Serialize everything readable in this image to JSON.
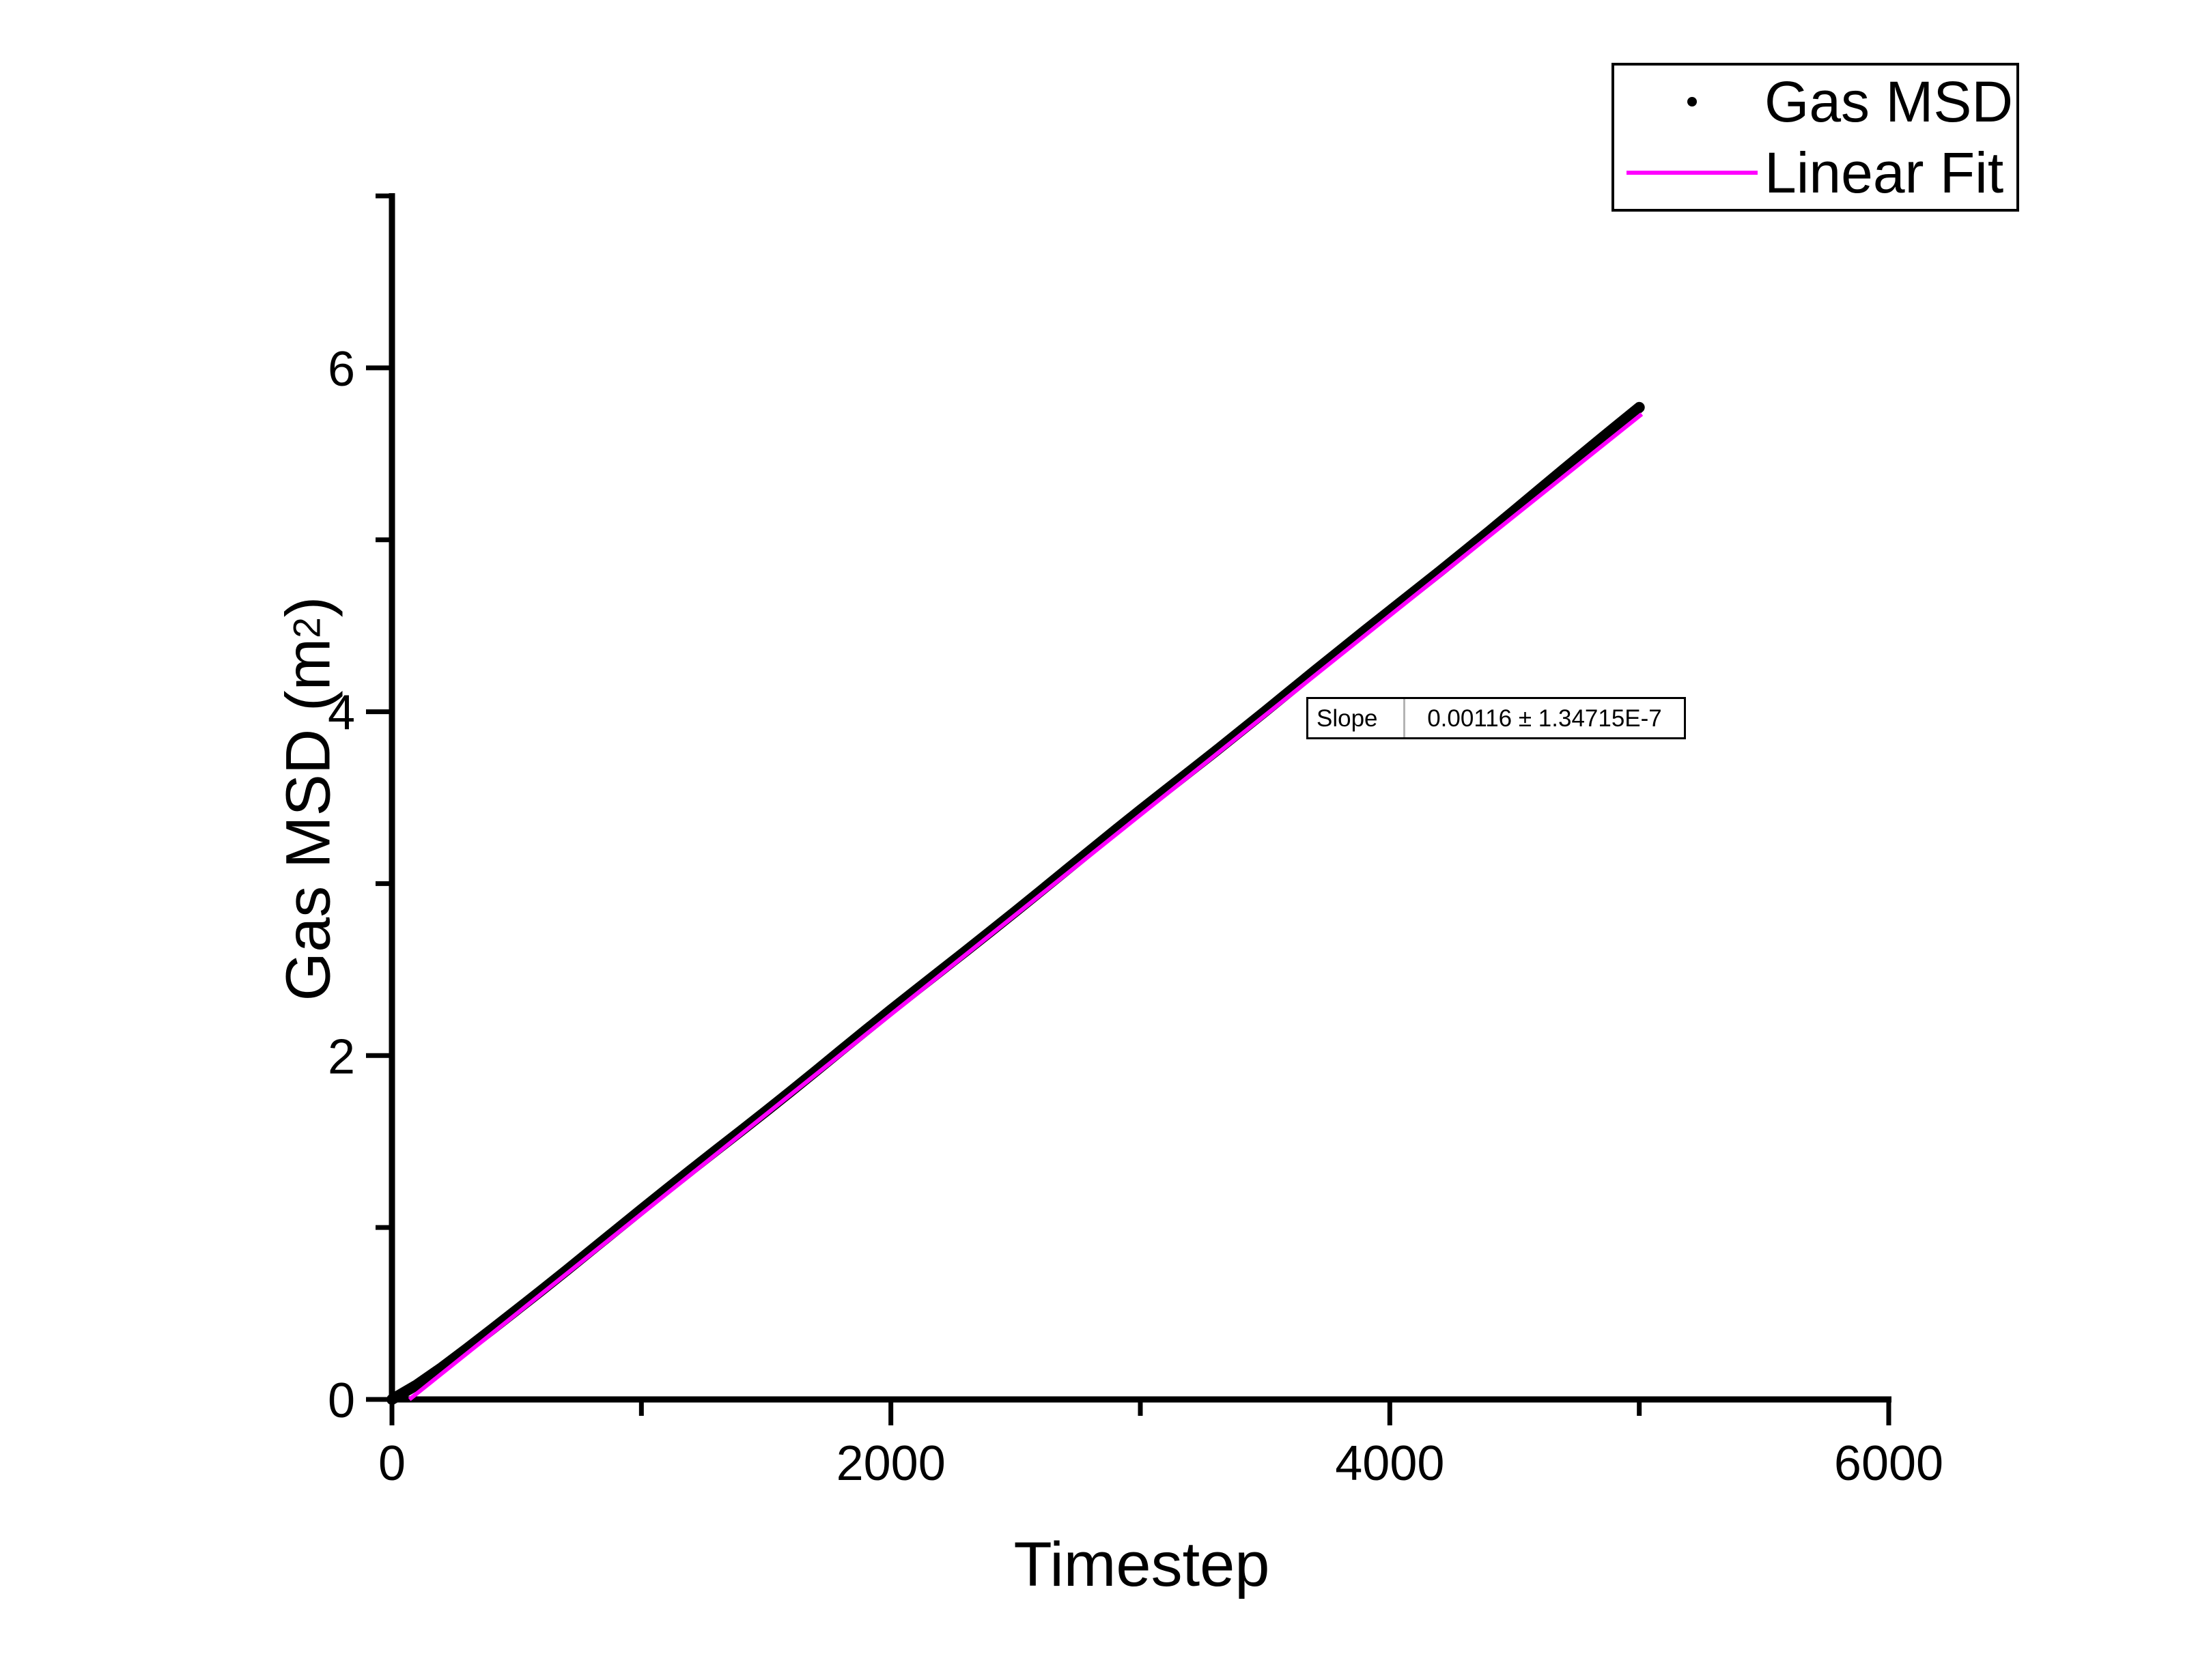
{
  "figure": {
    "background": "#ffffff",
    "axis_color": "#000000"
  },
  "legend": {
    "entries": [
      {
        "label": "Gas MSD",
        "marker": "dot",
        "color": "#000000"
      },
      {
        "label": "Linear Fit",
        "marker": "line",
        "color": "#ff00ff"
      }
    ]
  },
  "slope_box": {
    "label": "Slope",
    "value": "0.00116 ± 1.34715E-7"
  },
  "axes": {
    "x": {
      "title": "Timestep",
      "range": [
        0,
        6000
      ],
      "major_ticks": [
        0,
        2000,
        4000,
        6000
      ],
      "minor_ticks": [
        1000,
        3000,
        5000
      ]
    },
    "y": {
      "title_prefix": "Gas MSD (m",
      "title_sup": "2",
      "title_suffix": ")",
      "range": [
        0,
        7
      ],
      "major_ticks": [
        0,
        2,
        4,
        6
      ],
      "minor_ticks": [
        1,
        3,
        5,
        7
      ]
    }
  },
  "chart_data": {
    "type": "scatter",
    "title": "",
    "xlabel": "Timestep",
    "ylabel": "Gas MSD (m2)",
    "xlim": [
      0,
      6000
    ],
    "ylim": [
      0,
      7
    ],
    "grid": false,
    "legend_position": "top-right",
    "annotation": {
      "label": "Slope",
      "value": "0.00116 ± 1.34715E-7"
    },
    "fit": {
      "slope": 0.00116,
      "slope_error": "1.34715E-7"
    },
    "series": [
      {
        "name": "Gas MSD",
        "type": "scatter",
        "color": "#000000",
        "x": [
          0,
          100,
          200,
          300,
          400,
          500,
          600,
          700,
          800,
          900,
          1000,
          1100,
          1200,
          1300,
          1400,
          1500,
          1600,
          1700,
          1800,
          1900,
          2000,
          2100,
          2200,
          2300,
          2400,
          2500,
          2600,
          2700,
          2800,
          2900,
          3000,
          3100,
          3200,
          3300,
          3400,
          3500,
          3600,
          3700,
          3800,
          3900,
          4000,
          4100,
          4200,
          4300,
          4400,
          4500,
          4600,
          4700,
          4800,
          4900,
          5000
        ],
        "y": [
          0,
          0.085,
          0.186,
          0.295,
          0.407,
          0.521,
          0.635,
          0.751,
          0.869,
          0.987,
          1.104,
          1.221,
          1.336,
          1.45,
          1.563,
          1.677,
          1.793,
          1.911,
          2.03,
          2.148,
          2.265,
          2.38,
          2.494,
          2.608,
          2.723,
          2.839,
          2.957,
          3.075,
          3.193,
          3.311,
          3.427,
          3.541,
          3.655,
          3.769,
          3.885,
          4.002,
          4.12,
          4.238,
          4.355,
          4.471,
          4.586,
          4.701,
          4.816,
          4.933,
          5.051,
          5.171,
          5.292,
          5.413,
          5.533,
          5.652,
          5.77
        ]
      },
      {
        "name": "Linear Fit",
        "type": "line",
        "color": "#ff00ff",
        "x": [
          70,
          5010
        ],
        "y": [
          0,
          5.731
        ]
      }
    ]
  }
}
